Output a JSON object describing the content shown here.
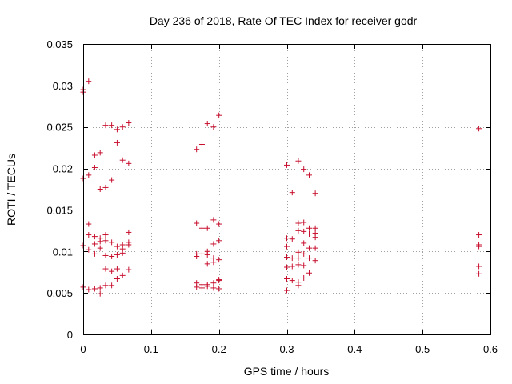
{
  "chart_data": {
    "type": "scatter",
    "title": "Day 236 of 2018, Rate Of TEC Index for receiver godr",
    "xlabel": "GPS time / hours",
    "ylabel": "ROTI / TECUs",
    "xlim": [
      0,
      0.6
    ],
    "ylim": [
      0,
      0.035
    ],
    "xticks": [
      0,
      0.1,
      0.2,
      0.3,
      0.4,
      0.5,
      0.6
    ],
    "xtick_labels": [
      "0",
      "0.1",
      "0.2",
      "0.3",
      "0.4",
      "0.5",
      "0.6"
    ],
    "yticks": [
      0,
      0.005,
      0.01,
      0.015,
      0.02,
      0.025,
      0.03,
      0.035
    ],
    "ytick_labels": [
      "0",
      "0.005",
      "0.01",
      "0.015",
      "0.02",
      "0.025",
      "0.03",
      "0.035"
    ],
    "grid": true,
    "marker": "+",
    "marker_color": "#c8102e",
    "series": [
      {
        "name": "ROTI",
        "points": [
          [
            0.0,
            0.0292
          ],
          [
            0.0,
            0.0295
          ],
          [
            0.008,
            0.0305
          ],
          [
            0.0,
            0.0188
          ],
          [
            0.008,
            0.0192
          ],
          [
            0.017,
            0.0201
          ],
          [
            0.017,
            0.0216
          ],
          [
            0.025,
            0.0219
          ],
          [
            0.025,
            0.0175
          ],
          [
            0.033,
            0.0177
          ],
          [
            0.042,
            0.0186
          ],
          [
            0.033,
            0.0252
          ],
          [
            0.042,
            0.0252
          ],
          [
            0.05,
            0.0247
          ],
          [
            0.058,
            0.025
          ],
          [
            0.067,
            0.0255
          ],
          [
            0.05,
            0.0231
          ],
          [
            0.058,
            0.021
          ],
          [
            0.067,
            0.0206
          ],
          [
            0.0,
            0.0107
          ],
          [
            0.0,
            0.0107
          ],
          [
            0.008,
            0.0133
          ],
          [
            0.008,
            0.012
          ],
          [
            0.008,
            0.0102
          ],
          [
            0.017,
            0.0118
          ],
          [
            0.017,
            0.0109
          ],
          [
            0.017,
            0.0097
          ],
          [
            0.025,
            0.0116
          ],
          [
            0.025,
            0.0112
          ],
          [
            0.025,
            0.0104
          ],
          [
            0.033,
            0.012
          ],
          [
            0.033,
            0.0113
          ],
          [
            0.033,
            0.0095
          ],
          [
            0.042,
            0.0111
          ],
          [
            0.042,
            0.0094
          ],
          [
            0.05,
            0.0106
          ],
          [
            0.05,
            0.0096
          ],
          [
            0.058,
            0.0108
          ],
          [
            0.058,
            0.0103
          ],
          [
            0.058,
            0.0098
          ],
          [
            0.067,
            0.0123
          ],
          [
            0.067,
            0.0111
          ],
          [
            0.067,
            0.0108
          ],
          [
            0.0,
            0.0057
          ],
          [
            0.008,
            0.0054
          ],
          [
            0.017,
            0.0055
          ],
          [
            0.025,
            0.0049
          ],
          [
            0.025,
            0.0056
          ],
          [
            0.033,
            0.0059
          ],
          [
            0.033,
            0.0079
          ],
          [
            0.042,
            0.0059
          ],
          [
            0.042,
            0.0076
          ],
          [
            0.05,
            0.0067
          ],
          [
            0.05,
            0.0079
          ],
          [
            0.058,
            0.0071
          ],
          [
            0.067,
            0.0078
          ],
          [
            0.167,
            0.0223
          ],
          [
            0.175,
            0.0229
          ],
          [
            0.183,
            0.0254
          ],
          [
            0.192,
            0.025
          ],
          [
            0.2,
            0.0264
          ],
          [
            0.167,
            0.0134
          ],
          [
            0.175,
            0.0128
          ],
          [
            0.183,
            0.0128
          ],
          [
            0.192,
            0.0138
          ],
          [
            0.2,
            0.0133
          ],
          [
            0.2,
            0.0113
          ],
          [
            0.192,
            0.0109
          ],
          [
            0.167,
            0.0097
          ],
          [
            0.167,
            0.0094
          ],
          [
            0.175,
            0.0097
          ],
          [
            0.183,
            0.01
          ],
          [
            0.183,
            0.0096
          ],
          [
            0.183,
            0.0085
          ],
          [
            0.192,
            0.0092
          ],
          [
            0.192,
            0.0087
          ],
          [
            0.2,
            0.009
          ],
          [
            0.167,
            0.0062
          ],
          [
            0.167,
            0.0057
          ],
          [
            0.175,
            0.006
          ],
          [
            0.175,
            0.0056
          ],
          [
            0.183,
            0.006
          ],
          [
            0.183,
            0.0058
          ],
          [
            0.192,
            0.0062
          ],
          [
            0.192,
            0.0056
          ],
          [
            0.2,
            0.0065
          ],
          [
            0.2,
            0.0055
          ],
          [
            0.2,
            0.0066
          ],
          [
            0.3,
            0.0204
          ],
          [
            0.308,
            0.0171
          ],
          [
            0.317,
            0.0209
          ],
          [
            0.325,
            0.0199
          ],
          [
            0.333,
            0.0192
          ],
          [
            0.342,
            0.017
          ],
          [
            0.3,
            0.0116
          ],
          [
            0.3,
            0.0106
          ],
          [
            0.3,
            0.0093
          ],
          [
            0.3,
            0.0081
          ],
          [
            0.3,
            0.0067
          ],
          [
            0.3,
            0.0053
          ],
          [
            0.308,
            0.0115
          ],
          [
            0.308,
            0.0092
          ],
          [
            0.308,
            0.0082
          ],
          [
            0.308,
            0.0065
          ],
          [
            0.317,
            0.0134
          ],
          [
            0.317,
            0.0125
          ],
          [
            0.317,
            0.0099
          ],
          [
            0.317,
            0.0092
          ],
          [
            0.317,
            0.0084
          ],
          [
            0.317,
            0.0063
          ],
          [
            0.317,
            0.0059
          ],
          [
            0.325,
            0.0135
          ],
          [
            0.325,
            0.0124
          ],
          [
            0.325,
            0.011
          ],
          [
            0.325,
            0.0097
          ],
          [
            0.325,
            0.0083
          ],
          [
            0.325,
            0.0068
          ],
          [
            0.333,
            0.0128
          ],
          [
            0.333,
            0.0121
          ],
          [
            0.333,
            0.0104
          ],
          [
            0.333,
            0.0092
          ],
          [
            0.333,
            0.0074
          ],
          [
            0.342,
            0.0128
          ],
          [
            0.342,
            0.0122
          ],
          [
            0.342,
            0.0117
          ],
          [
            0.342,
            0.0104
          ],
          [
            0.342,
            0.0089
          ],
          [
            0.583,
            0.0248
          ],
          [
            0.583,
            0.012
          ],
          [
            0.583,
            0.0108
          ],
          [
            0.583,
            0.0106
          ],
          [
            0.583,
            0.0082
          ],
          [
            0.583,
            0.0073
          ]
        ]
      }
    ]
  }
}
